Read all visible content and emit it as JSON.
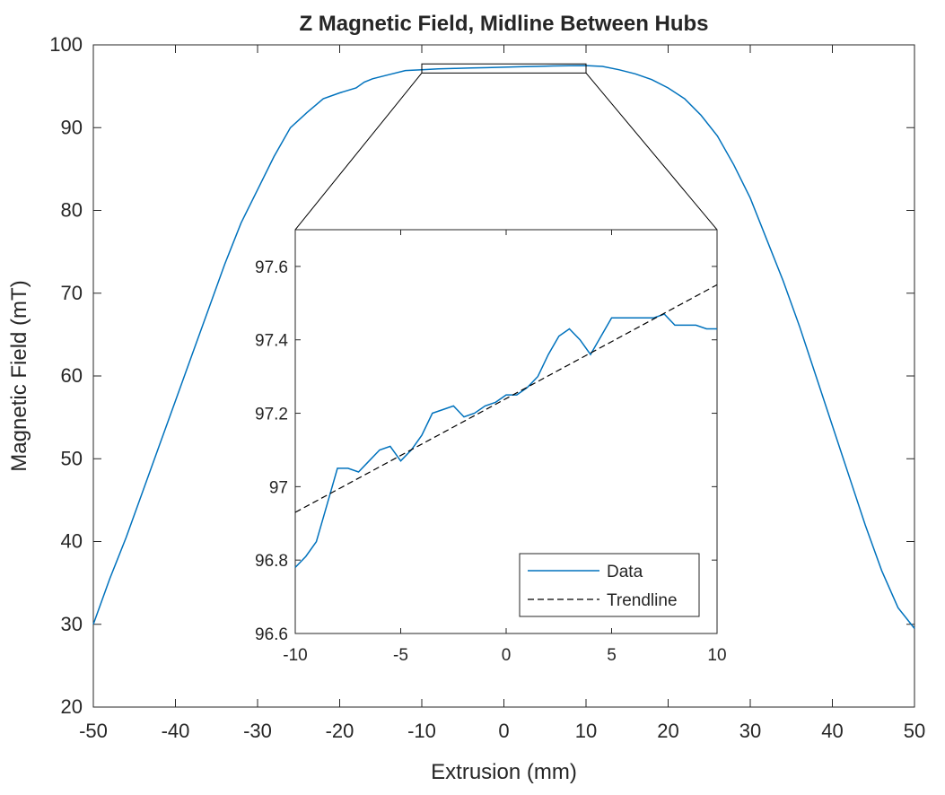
{
  "chart_data": [
    {
      "type": "line",
      "title": "Z Magnetic Field, Midline Between Hubs",
      "xlabel": "Extrusion (mm)",
      "ylabel": "Magnetic Field (mT)",
      "xlim": [
        -50,
        50
      ],
      "ylim": [
        20,
        100
      ],
      "xticks": [
        "-50",
        "-40",
        "-30",
        "-20",
        "-10",
        "0",
        "10",
        "20",
        "30",
        "40",
        "50"
      ],
      "yticks": [
        "20",
        "30",
        "40",
        "50",
        "60",
        "70",
        "80",
        "90",
        "100"
      ],
      "grid": false,
      "series": [
        {
          "name": "Data",
          "color": "#0072BD",
          "x": [
            -50,
            -48,
            -46,
            -44,
            -42,
            -40,
            -38,
            -36,
            -34,
            -32,
            -30,
            -28,
            -26,
            -24,
            -22,
            -20,
            -18,
            -17,
            -16,
            -14,
            -12,
            -10,
            -8,
            -6,
            -4,
            -2,
            0,
            2,
            4,
            6,
            8,
            10,
            12,
            14,
            16,
            18,
            20,
            22,
            24,
            26,
            28,
            30,
            32,
            34,
            36,
            38,
            40,
            42,
            44,
            46,
            48,
            50
          ],
          "y": [
            30,
            35.5,
            40.5,
            46,
            51.5,
            57,
            62.5,
            68,
            73.5,
            78.5,
            82.5,
            86.5,
            90,
            91.8,
            93.5,
            94.2,
            94.8,
            95.5,
            95.9,
            96.4,
            96.9,
            97.0,
            97.1,
            97.15,
            97.2,
            97.25,
            97.3,
            97.35,
            97.4,
            97.45,
            97.47,
            97.5,
            97.4,
            97.0,
            96.5,
            95.8,
            94.8,
            93.5,
            91.5,
            89.0,
            85.5,
            81.5,
            76.5,
            71.5,
            66.0,
            60.0,
            54.0,
            48.0,
            42.0,
            36.5,
            32.0,
            29.5
          ]
        }
      ],
      "zoom_box": {
        "x": [
          -10,
          10
        ],
        "y": [
          96.6,
          97.7
        ]
      }
    },
    {
      "type": "line",
      "xlim": [
        -10,
        10
      ],
      "ylim": [
        96.6,
        97.7
      ],
      "xticks": [
        "-10",
        "-5",
        "0",
        "5",
        "10"
      ],
      "yticks": [
        "96.6",
        "96.8",
        "97",
        "97.2",
        "97.4",
        "97.6"
      ],
      "legend_position": "bottom-right",
      "series": [
        {
          "name": "Data",
          "color": "#0072BD",
          "style": "solid",
          "x": [
            -10,
            -9.5,
            -9,
            -8.5,
            -8,
            -7.5,
            -7,
            -6.5,
            -6,
            -5.5,
            -5,
            -4.5,
            -4,
            -3.5,
            -3,
            -2.5,
            -2,
            -1.5,
            -1,
            -0.5,
            0,
            0.5,
            1,
            1.5,
            2,
            2.5,
            3,
            3.5,
            4,
            4.5,
            5,
            5.5,
            6,
            6.5,
            7,
            7.5,
            8,
            8.5,
            9,
            9.5,
            10
          ],
          "y": [
            96.78,
            96.81,
            96.85,
            96.95,
            97.05,
            97.05,
            97.04,
            97.07,
            97.1,
            97.11,
            97.07,
            97.1,
            97.14,
            97.2,
            97.21,
            97.22,
            97.19,
            97.2,
            97.22,
            97.23,
            97.25,
            97.25,
            97.27,
            97.3,
            97.36,
            97.41,
            97.43,
            97.4,
            97.36,
            97.41,
            97.46,
            97.46,
            97.46,
            97.46,
            97.46,
            97.47,
            97.44,
            97.44,
            97.44,
            97.43,
            97.43
          ]
        },
        {
          "name": "Trendline",
          "color": "#000000",
          "style": "dashed",
          "x": [
            -10,
            10
          ],
          "y": [
            96.93,
            97.55
          ]
        }
      ]
    }
  ]
}
